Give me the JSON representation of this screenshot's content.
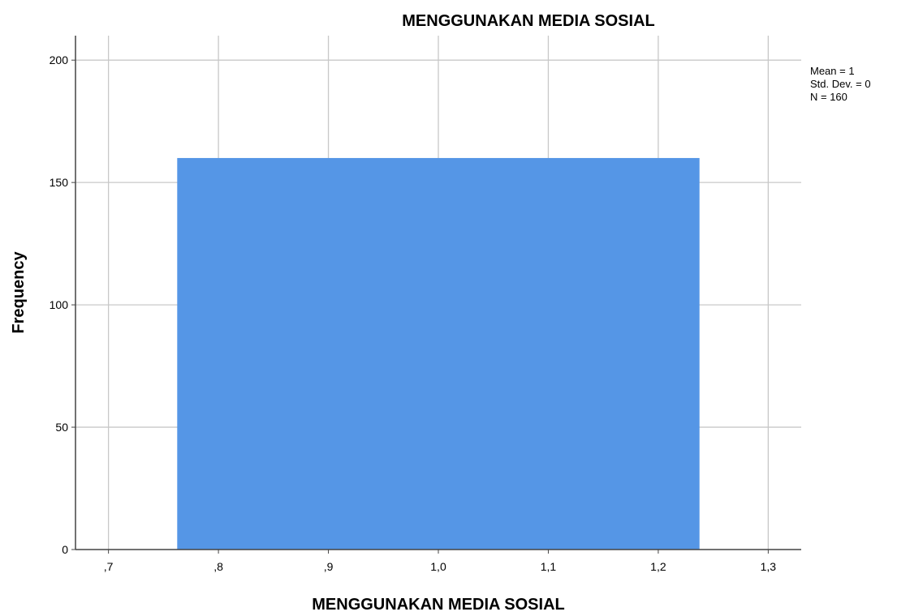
{
  "chart_data": {
    "type": "bar",
    "title": "MENGGUNAKAN MEDIA SOSIAL",
    "xlabel": "MENGGUNAKAN MEDIA SOSIAL",
    "ylabel": "Frequency",
    "xlim": [
      0.67,
      1.33
    ],
    "ylim": [
      0,
      210
    ],
    "x_ticks": [
      0.7,
      0.8,
      0.9,
      1.0,
      1.1,
      1.2,
      1.3
    ],
    "x_tick_labels": [
      ",7",
      ",8",
      ",9",
      "1,0",
      "1,1",
      "1,2",
      "1,3"
    ],
    "y_ticks": [
      0,
      50,
      100,
      150,
      200
    ],
    "y_tick_labels": [
      "0",
      "50",
      "100",
      "150",
      "200"
    ],
    "bins": [
      {
        "x_start": 0.7625,
        "x_end": 1.2375,
        "value": 160
      }
    ],
    "grid": true,
    "legend": {
      "placement": "top-right",
      "lines": [
        "Mean = 1",
        "Std. Dev. = 0",
        "N = 160"
      ]
    },
    "colors": {
      "bar": "#5596e6",
      "grid": "#c8c8c8",
      "axis": "#444444",
      "text": "#000000"
    }
  }
}
